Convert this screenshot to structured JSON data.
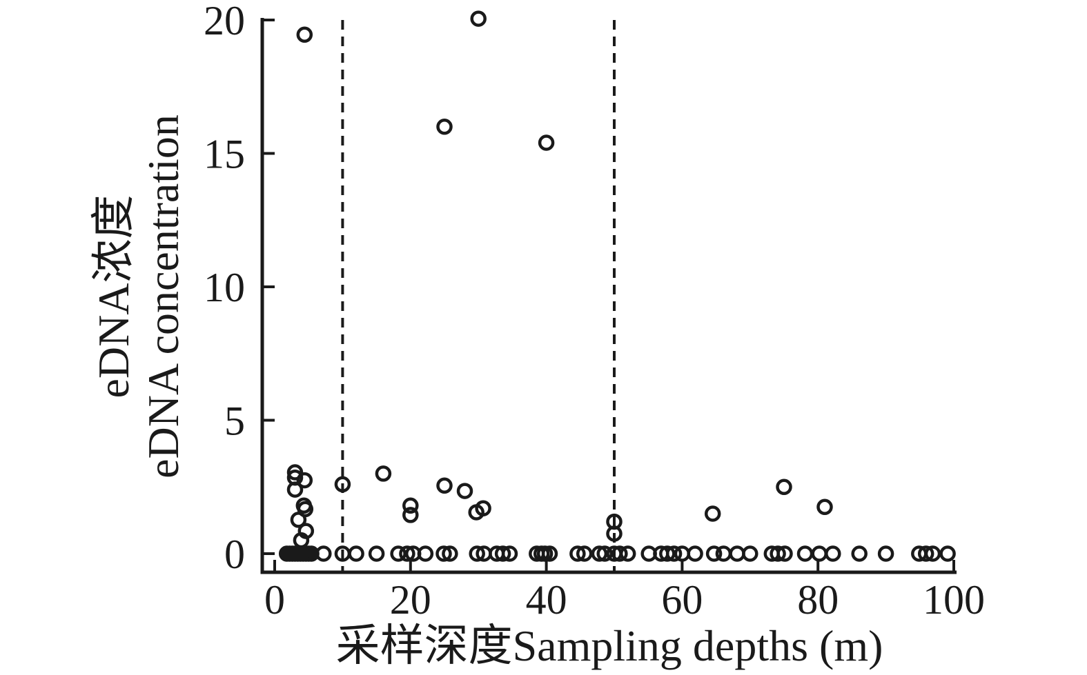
{
  "figure": {
    "title": "",
    "x_axis_label": "采样深度Sampling depths (m)",
    "y_axis_label_line1": "eDNA浓度",
    "y_axis_label_line2": "eDNA concentration"
  },
  "style": {
    "ink_color": "#1a1a1a",
    "background_color": "#ffffff",
    "marker": "open-circle"
  },
  "chart_data": {
    "type": "scatter",
    "title": "",
    "xlabel": "采样深度Sampling depths (m)",
    "ylabel": "eDNA浓度 eDNA concentration",
    "xlim": [
      0,
      100
    ],
    "ylim": [
      0,
      20
    ],
    "x_ticks": [
      0,
      20,
      40,
      60,
      80,
      100
    ],
    "y_ticks": [
      0,
      5,
      10,
      15,
      20
    ],
    "grid": false,
    "legend_position": "none",
    "reference_lines_x": [
      10,
      50
    ],
    "reference_line_style": "dashed",
    "points": [
      [
        4.4,
        19.45
      ],
      [
        30,
        20.05
      ],
      [
        25,
        16.0
      ],
      [
        40,
        15.4
      ],
      [
        3,
        3.05
      ],
      [
        3,
        2.85
      ],
      [
        4.4,
        2.75
      ],
      [
        3,
        2.4
      ],
      [
        4.3,
        1.8
      ],
      [
        4.5,
        1.67
      ],
      [
        3.5,
        1.27
      ],
      [
        4.6,
        0.85
      ],
      [
        3.9,
        0.5
      ],
      [
        10,
        2.6
      ],
      [
        16,
        3.0
      ],
      [
        20,
        1.8
      ],
      [
        20,
        1.45
      ],
      [
        25,
        2.55
      ],
      [
        28,
        2.35
      ],
      [
        29.7,
        1.55
      ],
      [
        30.7,
        1.7
      ],
      [
        50,
        1.2
      ],
      [
        50,
        0.75
      ],
      [
        64.5,
        1.5
      ],
      [
        75,
        2.5
      ],
      [
        81,
        1.75
      ],
      [
        1.8,
        0
      ],
      [
        2.2,
        0
      ],
      [
        2.6,
        0
      ],
      [
        3.0,
        0
      ],
      [
        3.4,
        0
      ],
      [
        3.8,
        0
      ],
      [
        4.2,
        0
      ],
      [
        4.6,
        0
      ],
      [
        5.0,
        0
      ],
      [
        5.4,
        0
      ],
      [
        7.2,
        0
      ],
      [
        10,
        0
      ],
      [
        12,
        0
      ],
      [
        15,
        0
      ],
      [
        18.2,
        0
      ],
      [
        19.5,
        0
      ],
      [
        20.4,
        0
      ],
      [
        22.2,
        0
      ],
      [
        24.9,
        0
      ],
      [
        25.8,
        0
      ],
      [
        29.8,
        0
      ],
      [
        30.8,
        0
      ],
      [
        32.7,
        0
      ],
      [
        33.6,
        0
      ],
      [
        34.6,
        0
      ],
      [
        38.6,
        0
      ],
      [
        39.3,
        0
      ],
      [
        39.8,
        0
      ],
      [
        40.5,
        0
      ],
      [
        44.6,
        0
      ],
      [
        45.6,
        0
      ],
      [
        47.8,
        0
      ],
      [
        48.6,
        0
      ],
      [
        50,
        0
      ],
      [
        50.8,
        0
      ],
      [
        52,
        0
      ],
      [
        55.1,
        0
      ],
      [
        56.9,
        0
      ],
      [
        57.8,
        0
      ],
      [
        58.8,
        0
      ],
      [
        60,
        0
      ],
      [
        61.9,
        0
      ],
      [
        64.7,
        0
      ],
      [
        66.1,
        0
      ],
      [
        68.1,
        0
      ],
      [
        70,
        0
      ],
      [
        73.2,
        0
      ],
      [
        74.1,
        0
      ],
      [
        75.1,
        0
      ],
      [
        78.1,
        0
      ],
      [
        80.2,
        0
      ],
      [
        82.2,
        0
      ],
      [
        86.1,
        0
      ],
      [
        90,
        0
      ],
      [
        94.9,
        0
      ],
      [
        95.9,
        0
      ],
      [
        96.9,
        0
      ],
      [
        99.1,
        0
      ]
    ]
  }
}
